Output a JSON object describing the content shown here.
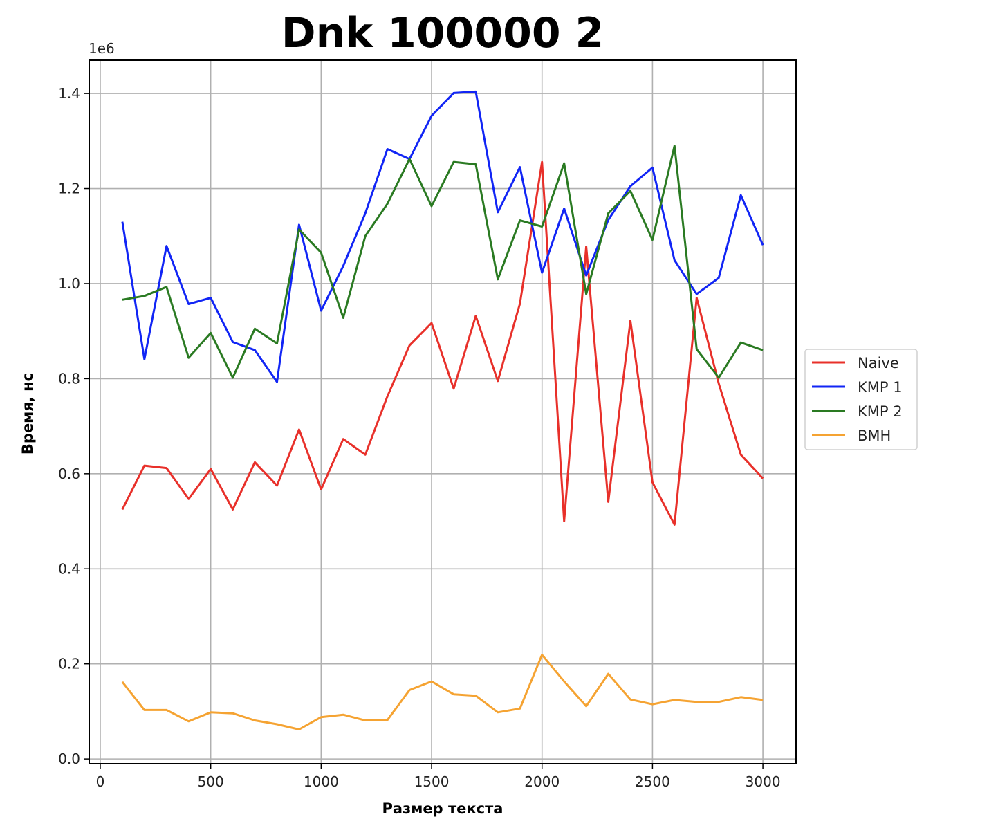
{
  "chart_data": {
    "type": "line",
    "title": "Dnk 100000 2",
    "xlabel": "Размер текста",
    "ylabel": "Время, нс",
    "offset_label": "1e6",
    "xlim": [
      -50,
      3150
    ],
    "ylim": [
      -0.01,
      1.47
    ],
    "xticks": [
      0,
      500,
      1000,
      1500,
      2000,
      2500,
      3000
    ],
    "xtick_labels": [
      "0",
      "500",
      "1000",
      "1500",
      "2000",
      "2500",
      "3000"
    ],
    "yticks": [
      0.0,
      0.2,
      0.4,
      0.6,
      0.8,
      1.0,
      1.2,
      1.4
    ],
    "ytick_labels": [
      "0.0",
      "0.2",
      "0.4",
      "0.6",
      "0.8",
      "1.0",
      "1.2",
      "1.4"
    ],
    "grid": true,
    "legend_position": "outside-right",
    "x": [
      100,
      200,
      300,
      400,
      500,
      600,
      700,
      800,
      900,
      1000,
      1100,
      1200,
      1300,
      1400,
      1500,
      1600,
      1700,
      1800,
      1900,
      2000,
      2100,
      2200,
      2300,
      2400,
      2500,
      2600,
      2700,
      2800,
      2900,
      3000
    ],
    "series": [
      {
        "name": "Naive",
        "color": "#e8302a",
        "values": [
          0.525,
          0.617,
          0.612,
          0.547,
          0.61,
          0.525,
          0.624,
          0.575,
          0.693,
          0.567,
          0.673,
          0.64,
          0.763,
          0.87,
          0.917,
          0.779,
          0.932,
          0.795,
          0.958,
          1.256,
          0.5,
          1.078,
          0.541,
          0.922,
          0.582,
          0.493,
          0.97,
          0.79,
          0.64,
          0.59
        ]
      },
      {
        "name": "KMP 1",
        "color": "#1125f5",
        "values": [
          1.13,
          0.841,
          1.079,
          0.957,
          0.97,
          0.877,
          0.86,
          0.793,
          1.124,
          0.943,
          1.037,
          1.148,
          1.283,
          1.262,
          1.353,
          1.401,
          1.404,
          1.15,
          1.245,
          1.023,
          1.158,
          1.017,
          1.134,
          1.205,
          1.244,
          1.049,
          0.978,
          1.012,
          1.186,
          1.081
        ]
      },
      {
        "name": "KMP 2",
        "color": "#2a7a22",
        "values": [
          0.966,
          0.974,
          0.993,
          0.844,
          0.896,
          0.802,
          0.905,
          0.874,
          1.114,
          1.065,
          0.928,
          1.1,
          1.168,
          1.262,
          1.163,
          1.256,
          1.251,
          1.009,
          1.133,
          1.12,
          1.253,
          0.978,
          1.148,
          1.195,
          1.092,
          1.29,
          0.862,
          0.802,
          0.876,
          0.86
        ]
      },
      {
        "name": "BMH",
        "color": "#f5a332",
        "values": [
          0.162,
          0.103,
          0.103,
          0.079,
          0.098,
          0.096,
          0.081,
          0.073,
          0.062,
          0.088,
          0.093,
          0.081,
          0.082,
          0.145,
          0.163,
          0.136,
          0.133,
          0.098,
          0.106,
          0.219,
          0.163,
          0.111,
          0.179,
          0.125,
          0.115,
          0.124,
          0.12,
          0.12,
          0.13,
          0.124
        ]
      }
    ]
  }
}
